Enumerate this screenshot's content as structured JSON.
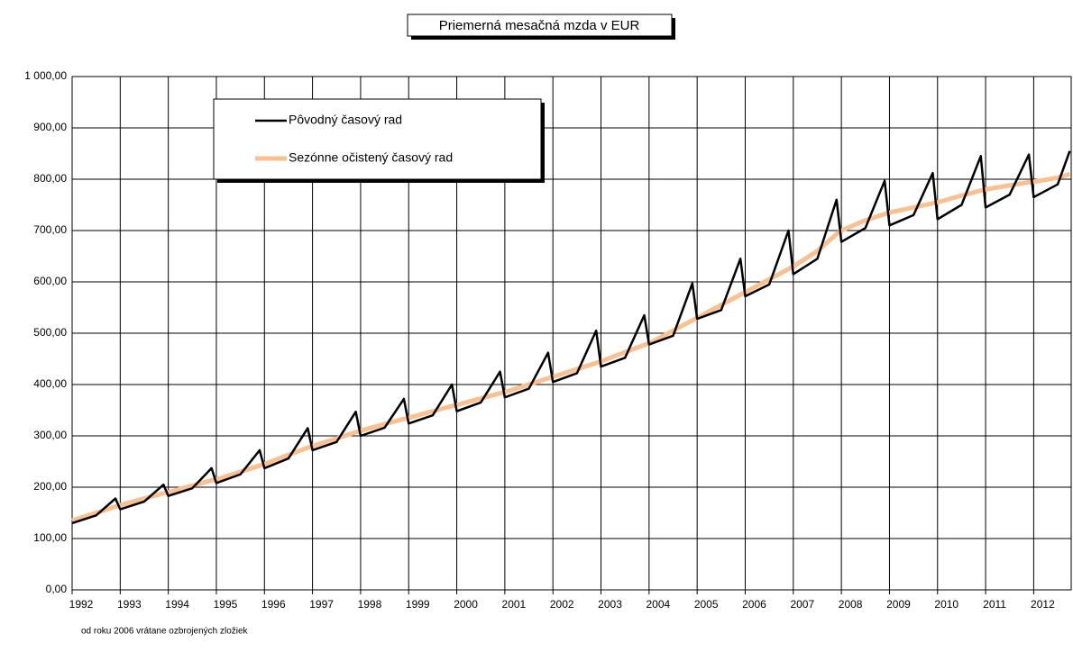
{
  "chart_data": {
    "type": "line",
    "title": "Priemerná mesačná mzda v EUR",
    "footnote": "od roku 2006 vrátane ozbrojených zložiek",
    "x": [
      1992,
      1992.5,
      1992.9,
      1993,
      1993.5,
      1993.9,
      1994,
      1994.5,
      1994.9,
      1995,
      1995.5,
      1995.9,
      1996,
      1996.5,
      1996.9,
      1997,
      1997.5,
      1997.9,
      1998,
      1998.5,
      1998.9,
      1999,
      1999.5,
      1999.9,
      2000,
      2000.5,
      2000.9,
      2001,
      2001.5,
      2001.9,
      2002,
      2002.5,
      2002.9,
      2003,
      2003.5,
      2003.9,
      2004,
      2004.5,
      2004.9,
      2005,
      2005.5,
      2005.9,
      2006,
      2006.5,
      2006.9,
      2007,
      2007.5,
      2007.9,
      2008,
      2008.5,
      2008.9,
      2009,
      2009.5,
      2009.9,
      2010,
      2010.5,
      2010.9,
      2011,
      2011.5,
      2011.9,
      2012,
      2012.5,
      2012.75
    ],
    "series": [
      {
        "name": "Pôvodný časový rad",
        "color": "#000000",
        "width": 2.5,
        "values": [
          130,
          145,
          178,
          157,
          172,
          205,
          183,
          198,
          237,
          208,
          225,
          272,
          237,
          256,
          315,
          272,
          288,
          347,
          300,
          316,
          372,
          324,
          340,
          400,
          348,
          365,
          425,
          375,
          392,
          462,
          405,
          422,
          505,
          435,
          452,
          535,
          478,
          495,
          597,
          528,
          545,
          645,
          572,
          595,
          700,
          615,
          645,
          760,
          678,
          705,
          797,
          710,
          730,
          812,
          722,
          750,
          845,
          745,
          770,
          848,
          765,
          790,
          855
        ]
      },
      {
        "name": "Sezónne očistený časový rad",
        "color": "#fac090",
        "width": 5,
        "values": [
          135,
          150,
          162,
          165,
          178,
          188,
          190,
          203,
          213,
          215,
          230,
          242,
          245,
          263,
          277,
          280,
          295,
          307,
          310,
          323,
          333,
          335,
          348,
          358,
          360,
          373,
          383,
          385,
          400,
          412,
          415,
          430,
          442,
          445,
          463,
          477,
          480,
          505,
          525,
          530,
          555,
          575,
          580,
          605,
          625,
          630,
          660,
          693,
          700,
          720,
          732,
          735,
          745,
          753,
          755,
          768,
          778,
          780,
          788,
          794,
          795,
          803,
          810
        ]
      }
    ],
    "xlim": [
      1992,
      2012.78
    ],
    "xticks": [
      1992,
      1993,
      1994,
      1995,
      1996,
      1997,
      1998,
      1999,
      2000,
      2001,
      2002,
      2003,
      2004,
      2005,
      2006,
      2007,
      2008,
      2009,
      2010,
      2011,
      2012
    ],
    "ylim": [
      0,
      1000
    ],
    "yticks": [
      {
        "value": 0,
        "label": "0,00"
      },
      {
        "value": 100,
        "label": "100,00"
      },
      {
        "value": 200,
        "label": "200,00"
      },
      {
        "value": 300,
        "label": "300,00"
      },
      {
        "value": 400,
        "label": "400,00"
      },
      {
        "value": 500,
        "label": "500,00"
      },
      {
        "value": 600,
        "label": "600,00"
      },
      {
        "value": 700,
        "label": "700,00"
      },
      {
        "value": 800,
        "label": "800,00"
      },
      {
        "value": 900,
        "label": "900,00"
      },
      {
        "value": 1000,
        "label": "1 000,00"
      }
    ],
    "grid": true
  }
}
